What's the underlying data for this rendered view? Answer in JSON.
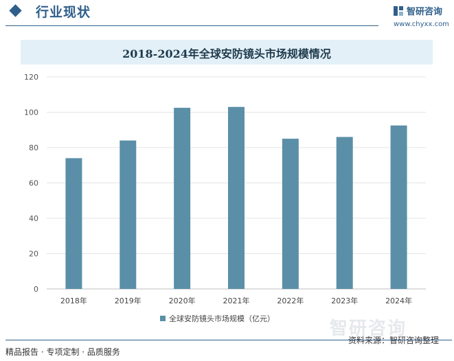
{
  "header": {
    "section_title": "行业现状",
    "brand_name": "智研咨询",
    "brand_url": "www.chyxx.com"
  },
  "chart_data": {
    "type": "bar",
    "title": "2018-2024年全球安防镜头市场规模情况",
    "categories": [
      "2018年",
      "2019年",
      "2020年",
      "2021年",
      "2022年",
      "2023年",
      "2024年"
    ],
    "series": [
      {
        "name": "全球安防镜头市场规模（亿元）",
        "values": [
          74,
          84,
          102.5,
          103,
          85,
          86,
          92.5
        ]
      }
    ],
    "ylim": [
      0,
      120
    ],
    "yticks": [
      0,
      20,
      40,
      60,
      80,
      100,
      120
    ],
    "grid": true,
    "legend": "bottom",
    "bar_color": "#5b8fa8"
  },
  "footer": {
    "left": "精品报告 · 专项定制 · 品质服务",
    "source": "资料来源：智研咨询整理",
    "watermark": "智研咨询"
  }
}
